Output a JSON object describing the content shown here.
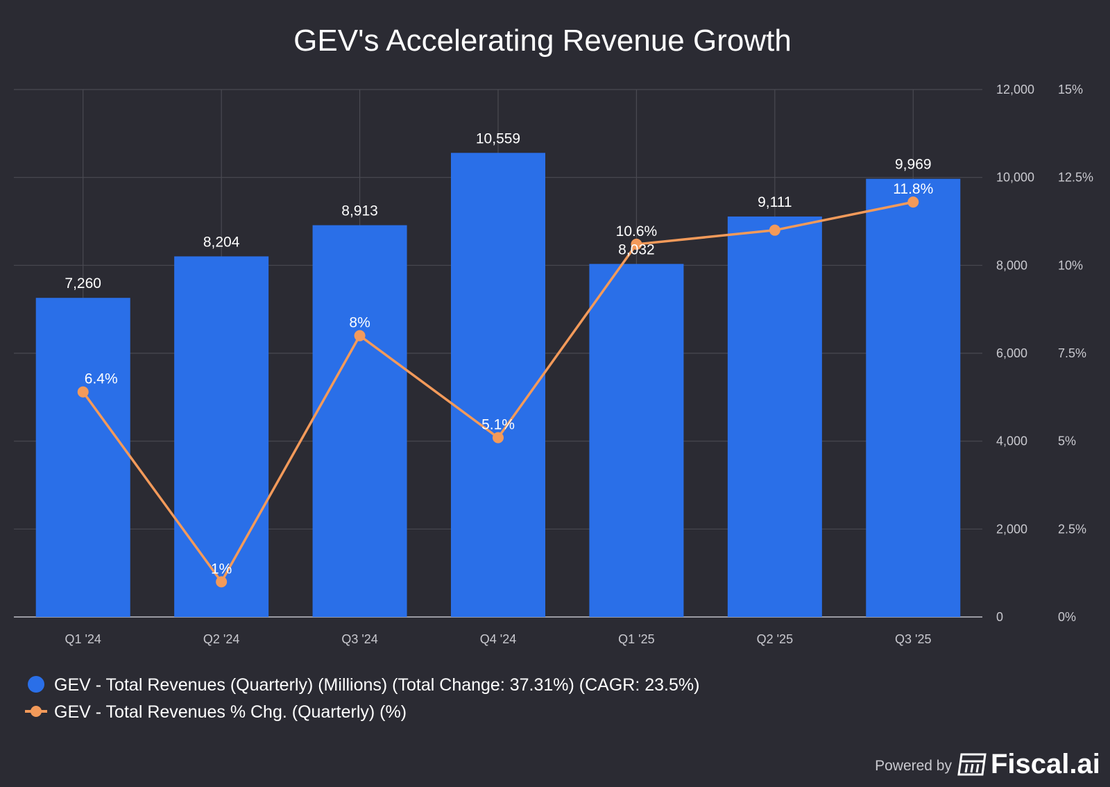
{
  "chart_data": {
    "type": "bar",
    "title": "GEV's Accelerating Revenue Growth",
    "categories": [
      "Q1 '24",
      "Q2 '24",
      "Q3 '24",
      "Q4 '24",
      "Q1 '25",
      "Q2 '25",
      "Q3 '25"
    ],
    "series": [
      {
        "name": "GEV - Total Revenues (Quarterly) (Millions) (Total Change: 37.31%) (CAGR: 23.5%)",
        "type": "bar",
        "axis": "left",
        "color": "#2a6fe8",
        "values": [
          7260,
          8204,
          8913,
          10559,
          8032,
          9111,
          9969
        ],
        "labels": [
          "7,260",
          "8,204",
          "8,913",
          "10,559",
          "8,032",
          "9,111",
          "9,969"
        ]
      },
      {
        "name": "GEV - Total Revenues % Chg. (Quarterly) (%)",
        "type": "line",
        "axis": "right",
        "color": "#f39a5a",
        "values": [
          6.4,
          1,
          8,
          5.1,
          10.6,
          11,
          11.8
        ],
        "labels": [
          "6.4%",
          "1%",
          "8%",
          "5.1%",
          "10.6%",
          "",
          "11.8%"
        ]
      }
    ],
    "y_left": {
      "range": [
        0,
        12000
      ],
      "ticks": [
        0,
        2000,
        4000,
        6000,
        8000,
        10000,
        12000
      ],
      "tick_labels": [
        "0",
        "2,000",
        "4,000",
        "6,000",
        "8,000",
        "10,000",
        "12,000"
      ]
    },
    "y_right": {
      "range": [
        0,
        15
      ],
      "ticks": [
        0,
        2.5,
        5,
        7.5,
        10,
        12.5,
        15
      ],
      "tick_labels": [
        "0%",
        "2.5%",
        "5%",
        "7.5%",
        "10%",
        "12.5%",
        "15%"
      ]
    },
    "grid": true,
    "legend_position": "bottom-left"
  },
  "legend": {
    "items": [
      {
        "label": "GEV - Total Revenues (Quarterly) (Millions) (Total Change: 37.31%) (CAGR: 23.5%)",
        "marker": "circle",
        "color": "#2a6fe8"
      },
      {
        "label": "GEV - Total Revenues % Chg. (Quarterly) (%)",
        "marker": "line-circle",
        "color": "#f39a5a"
      }
    ]
  },
  "branding": {
    "powered_by": "Powered by",
    "brand": "Fiscal.ai",
    "icon": "fiscal-logo-icon"
  },
  "colors": {
    "background": "#2b2b33",
    "grid": "#4a4a52",
    "text": "#ffffff",
    "muted": "#c9c9cf"
  }
}
